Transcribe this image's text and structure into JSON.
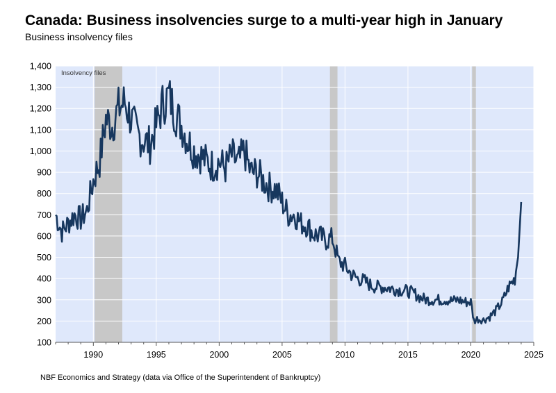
{
  "header": {
    "title": "Canada: Business insolvencies surge to a multi-year high in January",
    "subtitle": "Business insolvency files"
  },
  "footer": {
    "source": "NBF Economics and Strategy (data via Office of the Superintendent of Bankruptcy)"
  },
  "chart_data": {
    "type": "line",
    "title": "Canada: Business insolvencies surge to a multi-year high in January",
    "subtitle": "Business insolvency files",
    "xlabel": "",
    "ylabel": "",
    "annotation": "Insolvency files",
    "xlim": [
      1987,
      2025
    ],
    "ylim": [
      100,
      1400
    ],
    "y_ticks": [
      100,
      200,
      300,
      400,
      500,
      600,
      700,
      800,
      900,
      1000,
      1100,
      1200,
      1300,
      1400
    ],
    "y_tick_labels": [
      "100",
      "200",
      "300",
      "400",
      "500",
      "600",
      "700",
      "800",
      "900",
      "1,000",
      "1,100",
      "1,200",
      "1,300",
      "1,400"
    ],
    "x_ticks": [
      1990,
      1995,
      2000,
      2005,
      2010,
      2015,
      2020,
      2025
    ],
    "x_tick_labels": [
      "1990",
      "1995",
      "2000",
      "2005",
      "2010",
      "2015",
      "2020",
      "2025"
    ],
    "recessions": [
      [
        1990.1,
        1992.3
      ],
      [
        2008.8,
        2009.4
      ],
      [
        2020.1,
        2020.4
      ]
    ],
    "grid": true,
    "colors": {
      "plot_bg": "#dfe8fb",
      "line": "#17375e",
      "recession": "#c8c8c8",
      "grid": "#ffffff"
    },
    "series": [
      {
        "name": "Insolvency files",
        "x": [
          1987.0,
          1987.5,
          1988.0,
          1988.5,
          1989.0,
          1989.5,
          1990.0,
          1990.5,
          1991.0,
          1991.5,
          1992.0,
          1992.5,
          1993.0,
          1993.5,
          1994.0,
          1994.5,
          1995.0,
          1995.5,
          1996.0,
          1996.5,
          1997.0,
          1997.5,
          1998.0,
          1998.5,
          1999.0,
          1999.5,
          2000.0,
          2000.5,
          2001.0,
          2001.5,
          2002.0,
          2002.5,
          2003.0,
          2003.5,
          2004.0,
          2004.5,
          2005.0,
          2005.5,
          2006.0,
          2006.5,
          2007.0,
          2007.5,
          2008.0,
          2008.5,
          2009.0,
          2009.5,
          2010.0,
          2010.5,
          2011.0,
          2011.5,
          2012.0,
          2012.5,
          2013.0,
          2013.5,
          2014.0,
          2014.5,
          2015.0,
          2015.5,
          2016.0,
          2016.5,
          2017.0,
          2017.5,
          2018.0,
          2018.5,
          2019.0,
          2019.5,
          2020.0,
          2020.25,
          2020.5,
          2021.0,
          2021.5,
          2022.0,
          2022.5,
          2023.0,
          2023.5,
          2023.75,
          2024.0
        ],
        "values": [
          700,
          620,
          660,
          700,
          680,
          720,
          860,
          950,
          1150,
          1120,
          1200,
          1230,
          1150,
          1080,
          1050,
          1030,
          1120,
          1220,
          1260,
          1180,
          1120,
          1050,
          1000,
          980,
          950,
          930,
          950,
          920,
          980,
          940,
          1000,
          900,
          900,
          860,
          830,
          820,
          760,
          700,
          700,
          660,
          650,
          610,
          600,
          580,
          590,
          480,
          460,
          420,
          400,
          390,
          370,
          360,
          360,
          355,
          350,
          345,
          340,
          330,
          310,
          300,
          300,
          300,
          300,
          295,
          300,
          290,
          290,
          200,
          210,
          205,
          220,
          250,
          290,
          360,
          400,
          500,
          760
        ]
      }
    ]
  }
}
